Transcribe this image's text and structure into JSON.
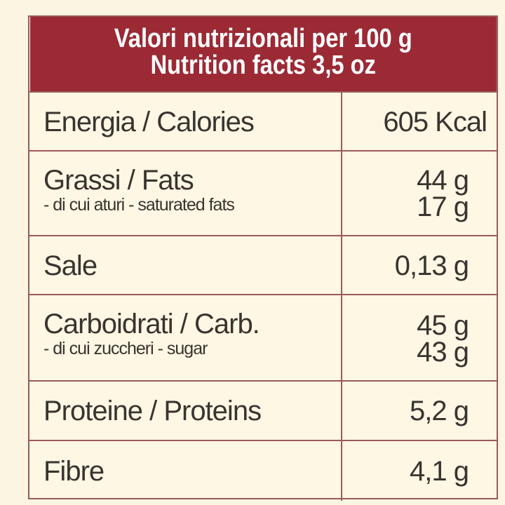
{
  "header": {
    "line1": "Valori nutrizionali per 100 g",
    "line2": "Nutrition facts 3,5 oz"
  },
  "rows": [
    {
      "label": "Energia / Calories",
      "value": "605 Kcal"
    },
    {
      "label": "Grassi / Fats",
      "sub_label": "- di cui aturi - saturated fats",
      "value": "44 g",
      "sub_value": "17 g"
    },
    {
      "label": "Sale",
      "value": "0,13 g"
    },
    {
      "label": "Carboidrati / Carb.",
      "sub_label": "- di cui zuccheri - sugar",
      "value": "45 g",
      "sub_value": "43 g"
    },
    {
      "label": "Proteine / Proteins",
      "value": "5,2 g"
    },
    {
      "label": "Fibre",
      "value": "4,1 g"
    }
  ],
  "colors": {
    "header_bg": "#9b2a35",
    "background": "#fcf5e1",
    "border": "#9a5a5a"
  }
}
